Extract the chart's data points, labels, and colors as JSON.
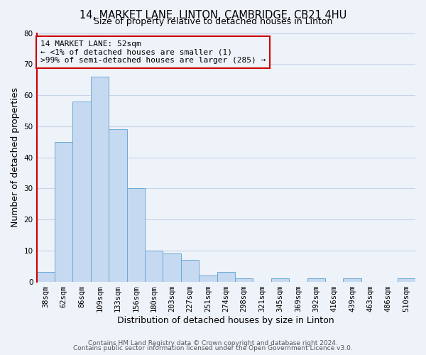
{
  "title": "14, MARKET LANE, LINTON, CAMBRIDGE, CB21 4HU",
  "subtitle": "Size of property relative to detached houses in Linton",
  "xlabel": "Distribution of detached houses by size in Linton",
  "ylabel": "Number of detached properties",
  "bin_labels": [
    "38sqm",
    "62sqm",
    "86sqm",
    "109sqm",
    "133sqm",
    "156sqm",
    "180sqm",
    "203sqm",
    "227sqm",
    "251sqm",
    "274sqm",
    "298sqm",
    "321sqm",
    "345sqm",
    "369sqm",
    "392sqm",
    "416sqm",
    "439sqm",
    "463sqm",
    "486sqm",
    "510sqm"
  ],
  "bar_heights": [
    3,
    45,
    58,
    66,
    49,
    30,
    10,
    9,
    7,
    2,
    3,
    1,
    0,
    1,
    0,
    1,
    0,
    1,
    0,
    0,
    1
  ],
  "bar_color": "#c5d9f0",
  "bar_edge_color": "#6aaad4",
  "highlight_color": "#cc0000",
  "ylim": [
    0,
    80
  ],
  "yticks": [
    0,
    10,
    20,
    30,
    40,
    50,
    60,
    70,
    80
  ],
  "annotation_title": "14 MARKET LANE: 52sqm",
  "annotation_line1": "← <1% of detached houses are smaller (1)",
  "annotation_line2": ">99% of semi-detached houses are larger (285) →",
  "annotation_box_color": "#cc0000",
  "footer_line1": "Contains HM Land Registry data © Crown copyright and database right 2024.",
  "footer_line2": "Contains public sector information licensed under the Open Government Licence v3.0.",
  "bg_color": "#eef2f9",
  "grid_color": "#c8d4e8",
  "title_fontsize": 10.5,
  "subtitle_fontsize": 9,
  "axis_label_fontsize": 9,
  "tick_fontsize": 7.5,
  "annotation_fontsize": 8,
  "footer_fontsize": 6.5
}
